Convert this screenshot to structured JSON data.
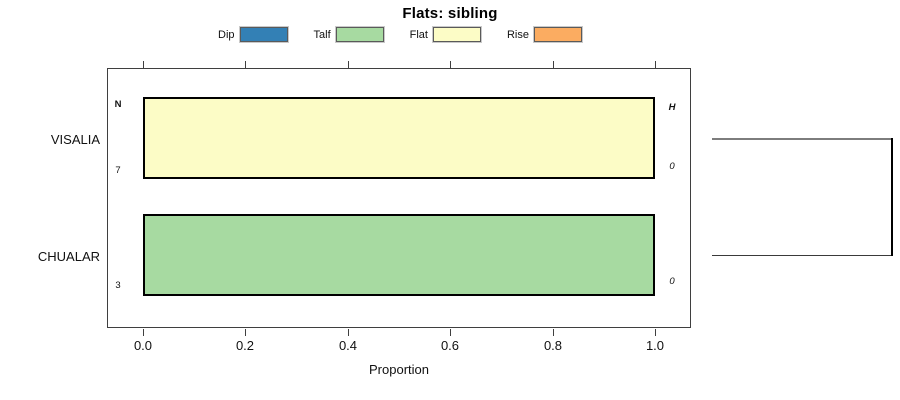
{
  "chart_data": {
    "type": "bar",
    "orientation": "horizontal",
    "stacked": true,
    "title": "Flats: sibling",
    "xlabel": "Proportion",
    "xlim": [
      0,
      1.07
    ],
    "xticks": [
      "0.0",
      "0.2",
      "0.4",
      "0.6",
      "0.8",
      "1.0"
    ],
    "xtick_values": [
      0.0,
      0.2,
      0.4,
      0.6,
      0.8,
      1.0
    ],
    "grid": false,
    "legend_position": "top",
    "categories": [
      "VISALIA",
      "CHUALAR"
    ],
    "series": [
      {
        "name": "Dip",
        "color": "#3380b5",
        "values": [
          0,
          0
        ]
      },
      {
        "name": "Talf",
        "color": "#a7daa1",
        "values": [
          0,
          1.0
        ]
      },
      {
        "name": "Flat",
        "color": "#fcfcc6",
        "values": [
          1.0,
          0
        ]
      },
      {
        "name": "Rise",
        "color": "#fbac61",
        "values": [
          0,
          0
        ]
      }
    ],
    "bars": [
      {
        "category": "VISALIA",
        "left_header": "N",
        "left_value": "7",
        "right_header": "H",
        "right_value": "0",
        "segments": [
          {
            "series": "Flat",
            "color": "#fcfcc6",
            "value": 1.0
          }
        ]
      },
      {
        "category": "CHUALAR",
        "left_value": "3",
        "right_value": "0",
        "segments": [
          {
            "series": "Talf",
            "color": "#a7daa1",
            "value": 1.0
          }
        ]
      }
    ],
    "right_margin": "dendrogram-bracket"
  }
}
